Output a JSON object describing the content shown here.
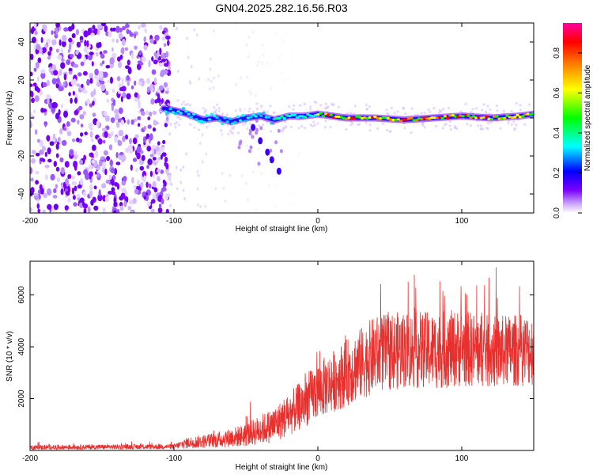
{
  "title": "GN04.2025.282.16.56.R03",
  "chart_data": [
    {
      "type": "heatmap",
      "name": "spectrogram",
      "xlabel": "Height of straight line (km)",
      "ylabel": "Frequency (Hz)",
      "xlim": [
        -200,
        150
      ],
      "ylim": [
        -50,
        50
      ],
      "xticks": [
        -200,
        -100,
        0,
        100
      ],
      "yticks": [
        -40,
        -20,
        0,
        20,
        40
      ],
      "colorbar": {
        "label": "Normalized spectral amplitude",
        "range": [
          0,
          0.95
        ],
        "ticks": [
          "0.0",
          "0.2",
          "0.4",
          "0.6",
          "0.8"
        ],
        "colors": [
          "#ffffff",
          "#7b00ff",
          "#0000ff",
          "#00ffff",
          "#00ff00",
          "#ffff00",
          "#ff7f00",
          "#ff0000",
          "#ff00a0"
        ]
      },
      "noise_region_km": [
        -200,
        -105
      ],
      "trace": [
        {
          "x": -107,
          "f": 5
        },
        {
          "x": -100,
          "f": 4
        },
        {
          "x": -90,
          "f": 2
        },
        {
          "x": -80,
          "f": -1
        },
        {
          "x": -70,
          "f": 0
        },
        {
          "x": -60,
          "f": -2
        },
        {
          "x": -50,
          "f": 0
        },
        {
          "x": -40,
          "f": 1
        },
        {
          "x": -30,
          "f": -1
        },
        {
          "x": -20,
          "f": 1
        },
        {
          "x": -10,
          "f": 1
        },
        {
          "x": 0,
          "f": 2
        },
        {
          "x": 10,
          "f": 1
        },
        {
          "x": 20,
          "f": 0
        },
        {
          "x": 40,
          "f": 0
        },
        {
          "x": 60,
          "f": -1
        },
        {
          "x": 80,
          "f": 0
        },
        {
          "x": 100,
          "f": 1
        },
        {
          "x": 120,
          "f": 0
        },
        {
          "x": 140,
          "f": 1
        },
        {
          "x": 150,
          "f": 2
        }
      ],
      "branch": [
        {
          "x": -45,
          "f": -5
        },
        {
          "x": -40,
          "f": -12
        },
        {
          "x": -35,
          "f": -18
        },
        {
          "x": -32,
          "f": -22
        },
        {
          "x": -27,
          "f": -28
        }
      ]
    },
    {
      "type": "line",
      "name": "snr",
      "xlabel": "Height of straight line (km)",
      "ylabel": "SNR (10 * v/v)",
      "xlim": [
        -200,
        150
      ],
      "ylim": [
        0,
        7300
      ],
      "xticks": [
        -200,
        -100,
        0,
        100
      ],
      "yticks": [
        2000,
        4000,
        6000
      ],
      "color": "#e8312e",
      "envelope": [
        {
          "x": -200,
          "mean": 120,
          "spread": 90
        },
        {
          "x": -100,
          "mean": 150,
          "spread": 100
        },
        {
          "x": -90,
          "mean": 300,
          "spread": 220
        },
        {
          "x": -70,
          "mean": 400,
          "spread": 300
        },
        {
          "x": -50,
          "mean": 600,
          "spread": 450
        },
        {
          "x": -30,
          "mean": 1000,
          "spread": 700
        },
        {
          "x": -15,
          "mean": 1600,
          "spread": 900
        },
        {
          "x": 0,
          "mean": 2300,
          "spread": 1100
        },
        {
          "x": 20,
          "mean": 3000,
          "spread": 1300
        },
        {
          "x": 40,
          "mean": 3700,
          "spread": 1500
        },
        {
          "x": 60,
          "mean": 3900,
          "spread": 1500
        },
        {
          "x": 80,
          "mean": 3850,
          "spread": 1500
        },
        {
          "x": 100,
          "mean": 3950,
          "spread": 1500
        },
        {
          "x": 120,
          "mean": 3800,
          "spread": 1400
        },
        {
          "x": 150,
          "mean": 3900,
          "spread": 1400
        }
      ]
    }
  ]
}
